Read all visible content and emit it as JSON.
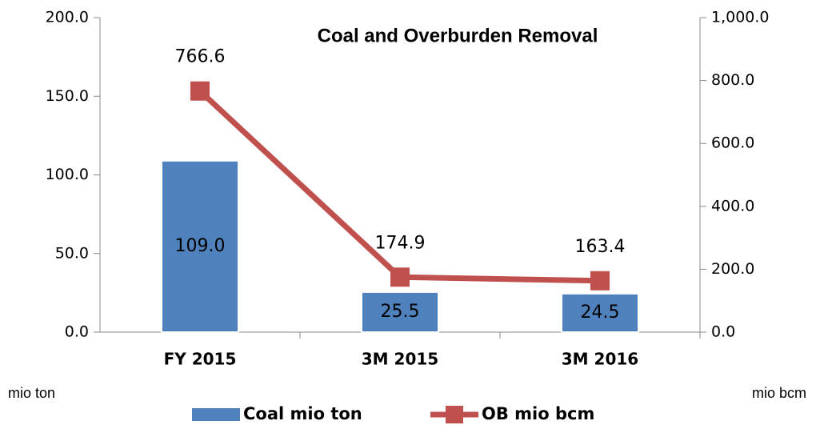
{
  "chart_data": {
    "type": "bar",
    "title": "Coal and Overburden Removal",
    "categories": [
      "FY 2015",
      "3M 2015",
      "3M 2016"
    ],
    "series": [
      {
        "name": "Coal mio ton",
        "type": "bar",
        "color": "#4f81bd",
        "values": [
          109.0,
          25.5,
          24.5
        ],
        "value_labels": [
          "109.0",
          "25.5",
          "24.5"
        ]
      },
      {
        "name": "OB mio bcm",
        "type": "line",
        "axis": "y2",
        "color": "#c0504d",
        "values": [
          766.6,
          174.9,
          163.4
        ]
      }
    ],
    "ylabel": "mio ton",
    "y2label": "mio bcm",
    "ylim": [
      0,
      200
    ],
    "yticks": [
      {
        "value": 0,
        "label": "0.0"
      },
      {
        "value": 50,
        "label": "50.0"
      },
      {
        "value": 100,
        "label": "100.0"
      },
      {
        "value": 150,
        "label": "150.0"
      },
      {
        "value": 200,
        "label": "200.0"
      }
    ],
    "y2lim": [
      0,
      1000
    ],
    "y2ticks": [
      {
        "value": 0,
        "label": "0.0"
      },
      {
        "value": 200,
        "label": "200.0"
      },
      {
        "value": 400,
        "label": "400.0"
      },
      {
        "value": 600,
        "label": "600.0"
      },
      {
        "value": 800,
        "label": "800.0"
      },
      {
        "value": 1000,
        "label": "1,000.0"
      }
    ],
    "legend": "bottom",
    "grid": false
  }
}
